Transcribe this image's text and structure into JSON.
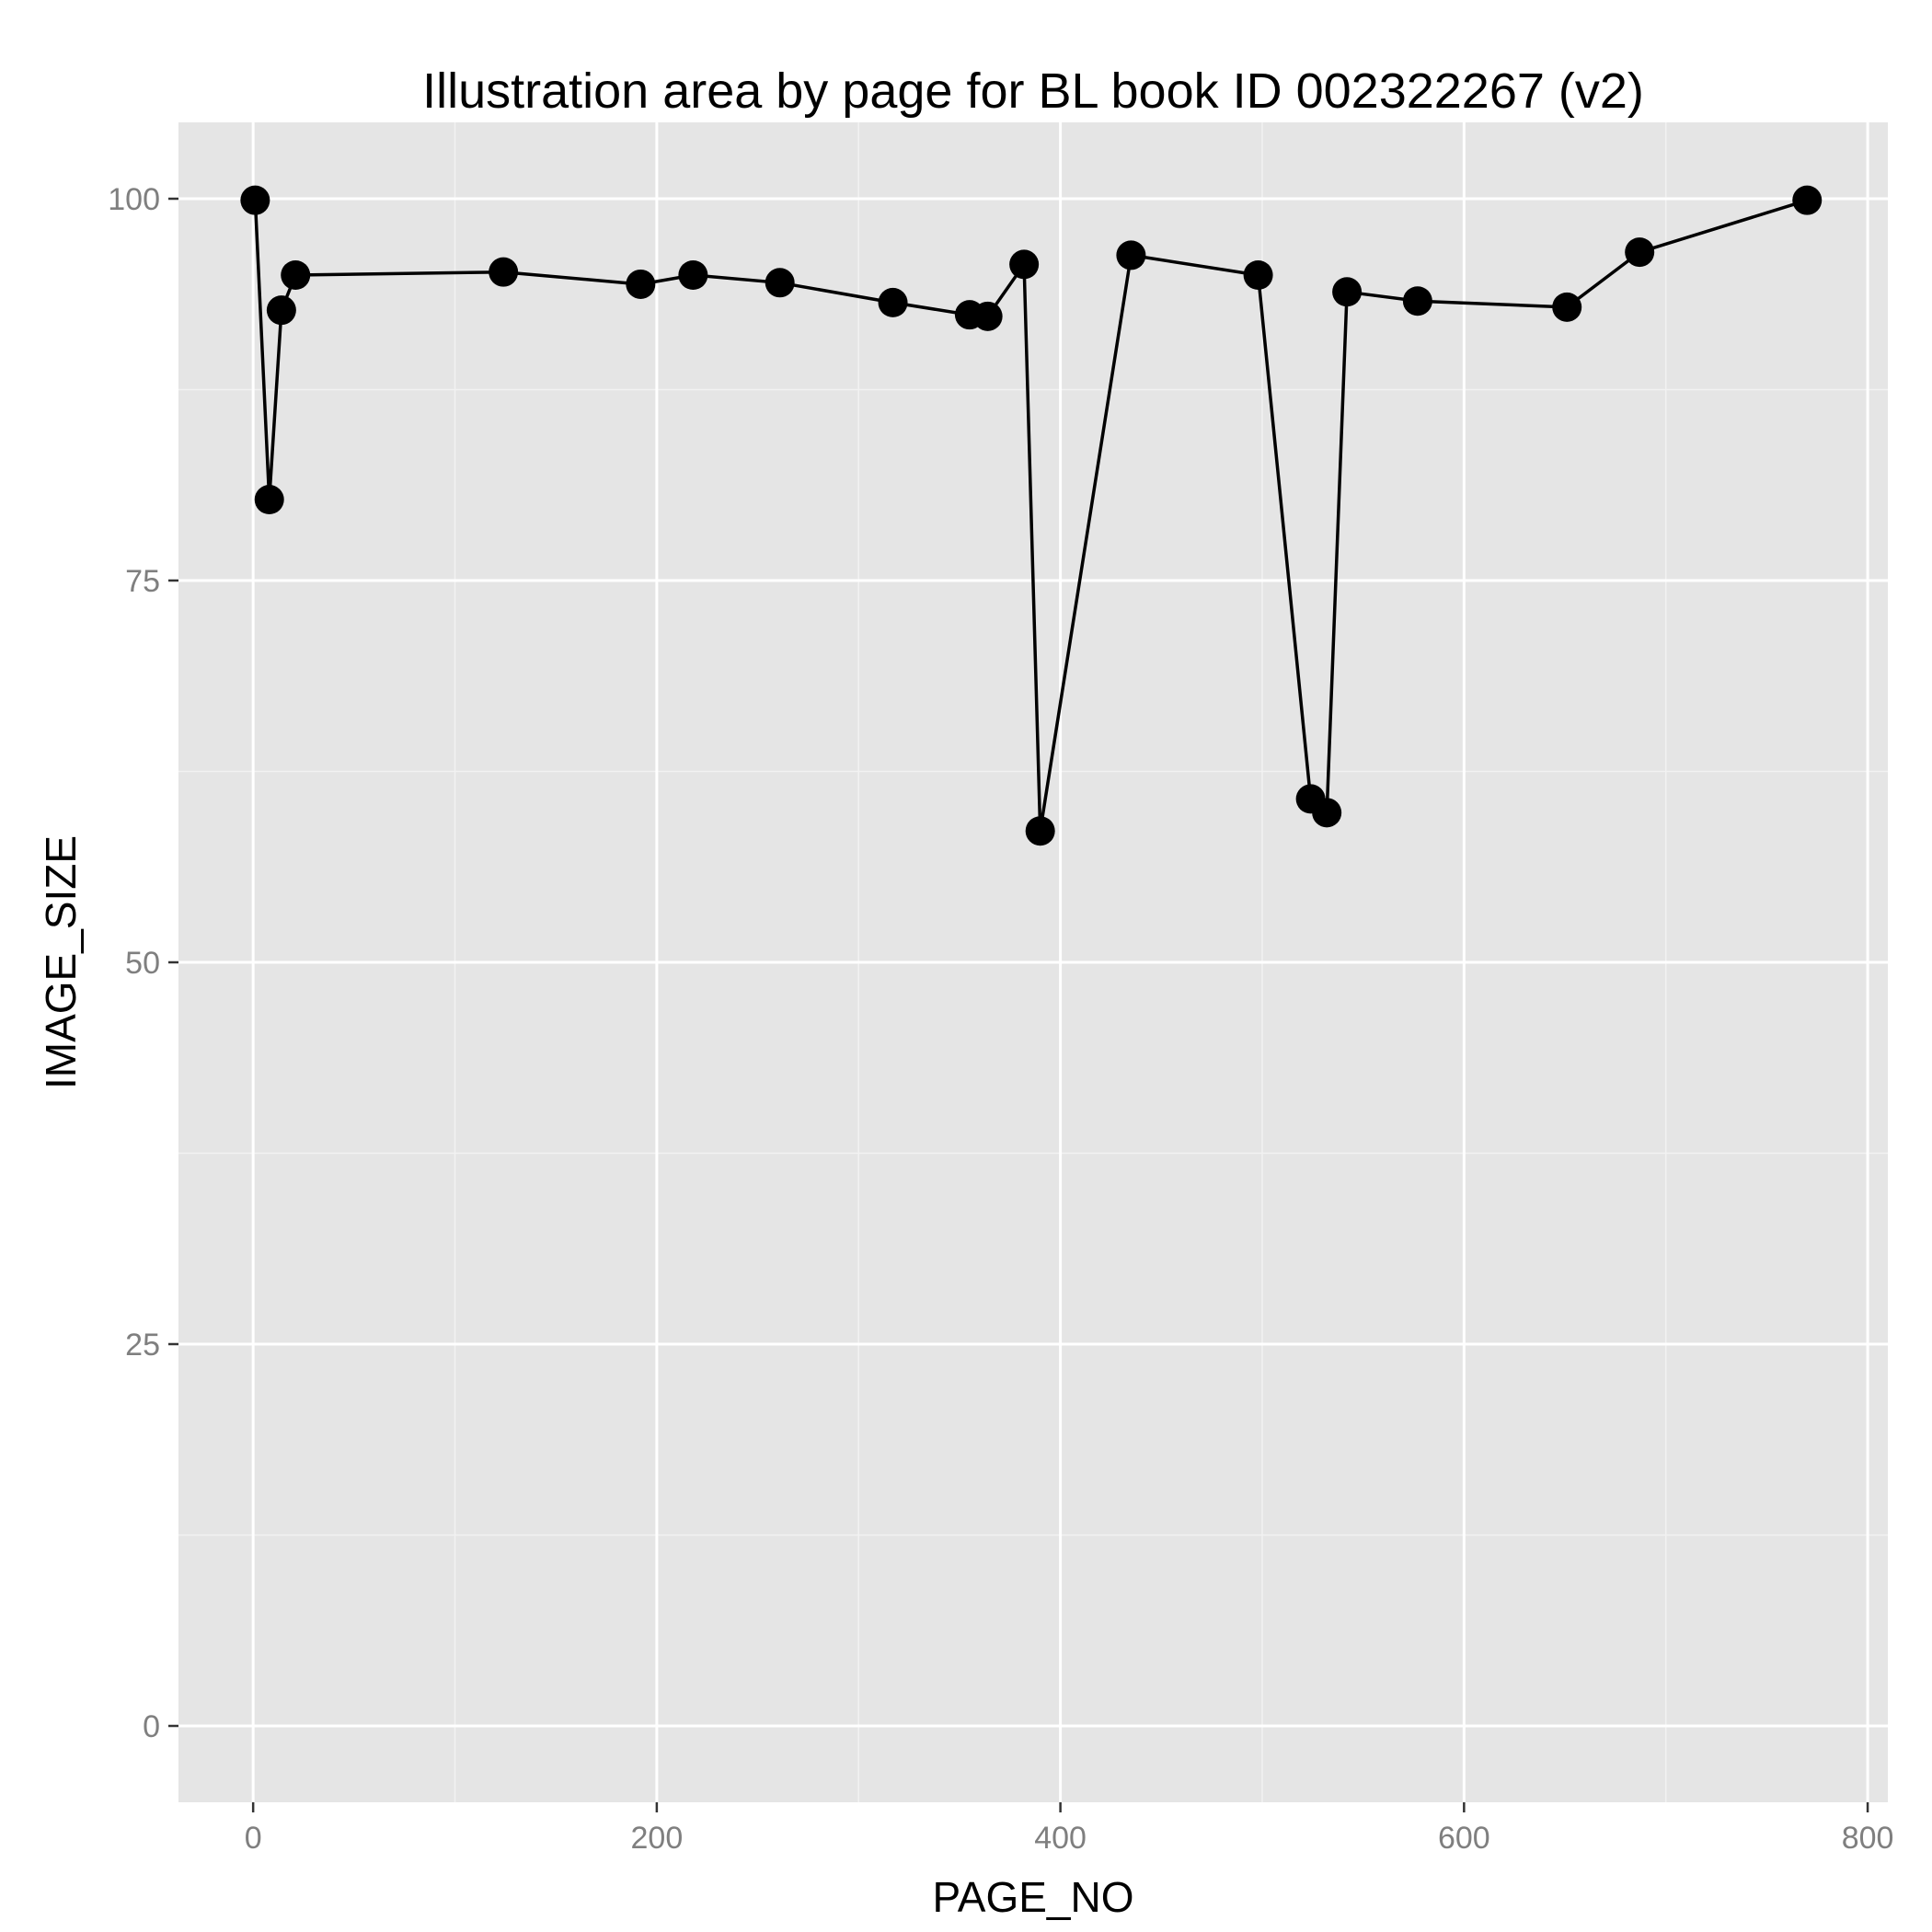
{
  "chart_data": {
    "type": "line",
    "title": "Illustration area by page for BL book ID 002322267 (v2)",
    "xlabel": "PAGE_NO",
    "ylabel": "IMAGE_SIZE",
    "xlim": [
      -37,
      810
    ],
    "ylim": [
      -5,
      105
    ],
    "x_ticks": [
      0,
      200,
      400,
      600,
      800
    ],
    "y_ticks": [
      0,
      25,
      50,
      75,
      100
    ],
    "x_tick_labels": [
      "0",
      "200",
      "400",
      "600",
      "800"
    ],
    "y_tick_labels": [
      "0",
      "25",
      "50",
      "75",
      "100"
    ],
    "x_minor_ticks": [
      100,
      300,
      500,
      700
    ],
    "y_minor_ticks": [
      12.5,
      37.5,
      62.5,
      87.5
    ],
    "grid": true,
    "legend": "none",
    "series": [
      {
        "points": [
          {
            "x": 1,
            "y": 99.9
          },
          {
            "x": 8,
            "y": 80.3
          },
          {
            "x": 14,
            "y": 92.7
          },
          {
            "x": 21,
            "y": 95.0
          },
          {
            "x": 124,
            "y": 95.2
          },
          {
            "x": 192,
            "y": 94.4
          },
          {
            "x": 218,
            "y": 95.0
          },
          {
            "x": 261,
            "y": 94.5
          },
          {
            "x": 317,
            "y": 93.2
          },
          {
            "x": 355,
            "y": 92.4
          },
          {
            "x": 364,
            "y": 92.3
          },
          {
            "x": 382,
            "y": 95.7
          },
          {
            "x": 390,
            "y": 58.6
          },
          {
            "x": 435,
            "y": 96.3
          },
          {
            "x": 498,
            "y": 95.0
          },
          {
            "x": 524,
            "y": 60.7
          },
          {
            "x": 532,
            "y": 59.8
          },
          {
            "x": 542,
            "y": 93.9
          },
          {
            "x": 577,
            "y": 93.3
          },
          {
            "x": 651,
            "y": 92.9
          },
          {
            "x": 687,
            "y": 96.5
          },
          {
            "x": 770,
            "y": 99.9
          }
        ]
      }
    ]
  },
  "colors": {
    "panel_background": "#e5e5e5",
    "grid_major": "#ffffff",
    "grid_minor": "#f2f2f2",
    "line": "#000000",
    "point": "#000000",
    "tick_label": "#7f7f7f"
  }
}
